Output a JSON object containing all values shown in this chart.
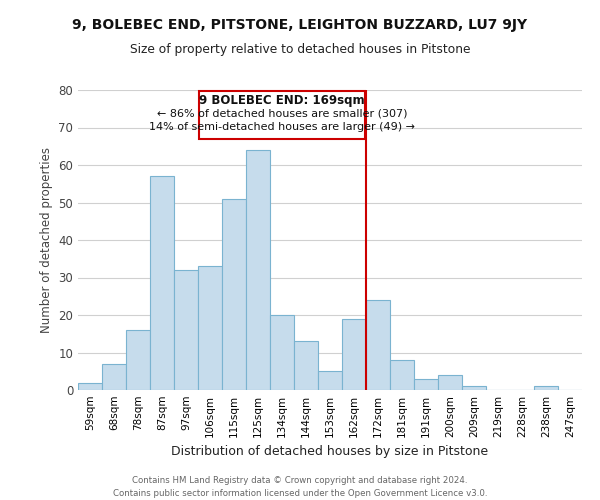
{
  "title": "9, BOLEBEC END, PITSTONE, LEIGHTON BUZZARD, LU7 9JY",
  "subtitle": "Size of property relative to detached houses in Pitstone",
  "xlabel": "Distribution of detached houses by size in Pitstone",
  "ylabel": "Number of detached properties",
  "bar_labels": [
    "59sqm",
    "68sqm",
    "78sqm",
    "87sqm",
    "97sqm",
    "106sqm",
    "115sqm",
    "125sqm",
    "134sqm",
    "144sqm",
    "153sqm",
    "162sqm",
    "172sqm",
    "181sqm",
    "191sqm",
    "200sqm",
    "209sqm",
    "219sqm",
    "228sqm",
    "238sqm",
    "247sqm"
  ],
  "bar_values": [
    2,
    7,
    16,
    57,
    32,
    33,
    51,
    64,
    20,
    13,
    5,
    19,
    24,
    8,
    3,
    4,
    1,
    0,
    0,
    1,
    0
  ],
  "bar_color": "#c6dcec",
  "bar_edgecolor": "#7ab3d0",
  "vline_color": "#cc0000",
  "ylim": [
    0,
    80
  ],
  "yticks": [
    0,
    10,
    20,
    30,
    40,
    50,
    60,
    70,
    80
  ],
  "annotation_title": "9 BOLEBEC END: 169sqm",
  "annotation_line1": "← 86% of detached houses are smaller (307)",
  "annotation_line2": "14% of semi-detached houses are larger (49) →",
  "annotation_box_color": "#ffffff",
  "annotation_box_edgecolor": "#cc0000",
  "footer_line1": "Contains HM Land Registry data © Crown copyright and database right 2024.",
  "footer_line2": "Contains public sector information licensed under the Open Government Licence v3.0.",
  "background_color": "#ffffff",
  "grid_color": "#d0d0d0"
}
